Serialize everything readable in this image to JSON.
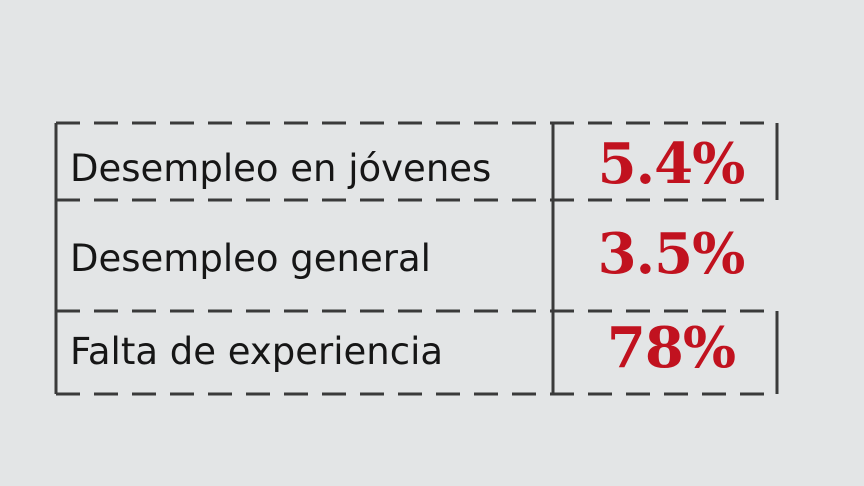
{
  "chart_data": {
    "type": "table",
    "rows": [
      {
        "label": "Desempleo en jóvenes",
        "value": "5.4%"
      },
      {
        "label": "Desempleo general",
        "value": "3.5%"
      },
      {
        "label": "Falta de experiencia",
        "value": "78%"
      }
    ]
  },
  "colors": {
    "background": "#e3e5e6",
    "line": "#3a3a3a",
    "label_text": "#161616",
    "value_text": "#c1121f"
  }
}
